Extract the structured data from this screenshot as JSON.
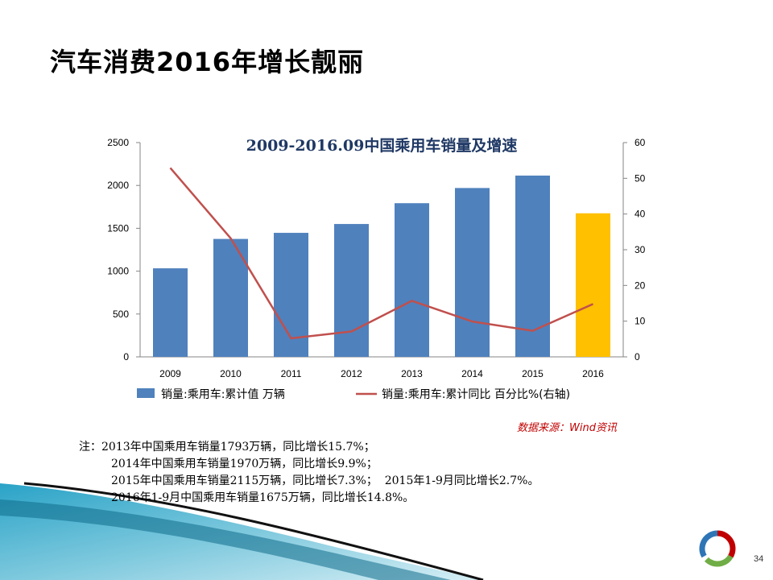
{
  "slide": {
    "title": "汽车消费2016年增长靓丽",
    "page_number": "34"
  },
  "source": "数据来源：Wind资讯",
  "notes": [
    "注：2013年中国乘用车销量1793万辆，同比增长15.7%；",
    "2014年中国乘用车销量1970万辆，同比增长9.9%；",
    "2015年中国乘用车销量2115万辆，同比增长7.3%；  2015年1-9月同比增长2.7%。",
    "2016年1-9月中国乘用车销量1675万辆，同比增长14.8%。"
  ],
  "colors": {
    "bar": "#4f81bd",
    "bar_highlight": "#ffc000",
    "line": "#c0504d",
    "title": "#1f3864",
    "source": "#c00000"
  },
  "chart_data": {
    "type": "bar",
    "title": "2009-2016.09中国乘用车销量及增速",
    "categories": [
      "2009",
      "2010",
      "2011",
      "2012",
      "2013",
      "2014",
      "2015",
      "2016"
    ],
    "series": [
      {
        "name": "销量:乘用车:累计值 万辆",
        "type": "bar",
        "axis": "left",
        "values": [
          1033,
          1376,
          1447,
          1550,
          1793,
          1970,
          2115,
          1675
        ],
        "highlight_index": 7
      },
      {
        "name": "销量:乘用车:累计同比 百分比%(右轴)",
        "type": "line",
        "axis": "right",
        "values": [
          52.9,
          33.2,
          5.2,
          7.1,
          15.7,
          9.9,
          7.3,
          14.8
        ]
      }
    ],
    "ylim_left": [
      0,
      2500
    ],
    "yticks_left": [
      "0",
      "500",
      "1000",
      "1500",
      "2000",
      "2500"
    ],
    "ylim_right": [
      0,
      60
    ],
    "yticks_right": [
      "0",
      "10",
      "20",
      "30",
      "40",
      "50",
      "60"
    ],
    "legend_position": "bottom",
    "grid": false
  }
}
